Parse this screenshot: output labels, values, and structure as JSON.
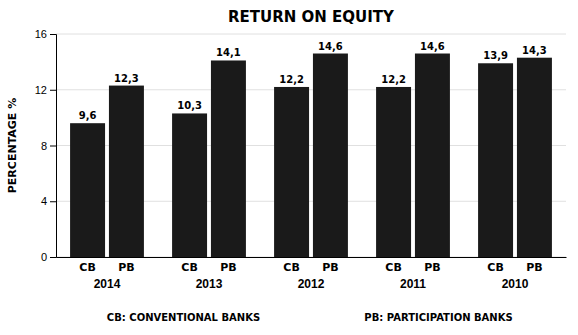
{
  "chart_data": {
    "type": "bar",
    "title": "RETURN ON EQUITY",
    "ylabel": "PERCENTAGE %",
    "categories": [
      "2014",
      "2013",
      "2012",
      "2011",
      "2010"
    ],
    "series": [
      {
        "name": "CB",
        "color": "#1a1a1a",
        "values": [
          9.6,
          10.3,
          12.2,
          12.2,
          13.9
        ],
        "value_labels": [
          "9,6",
          "10,3",
          "12,2",
          "12,2",
          "13,9"
        ]
      },
      {
        "name": "PB",
        "color": "#1a1a1a",
        "values": [
          12.3,
          14.1,
          14.6,
          14.6,
          14.3
        ],
        "value_labels": [
          "12,3",
          "14,1",
          "14,6",
          "14,6",
          "14,3"
        ]
      }
    ],
    "annotations": [
      "CB: CONVENTIONAL BANKS",
      "PB: PARTICIPATION BANKS"
    ],
    "ylim": [
      0,
      16
    ],
    "yticks": [
      0,
      4,
      8,
      12,
      16
    ],
    "grid": true,
    "data_labels": true
  }
}
